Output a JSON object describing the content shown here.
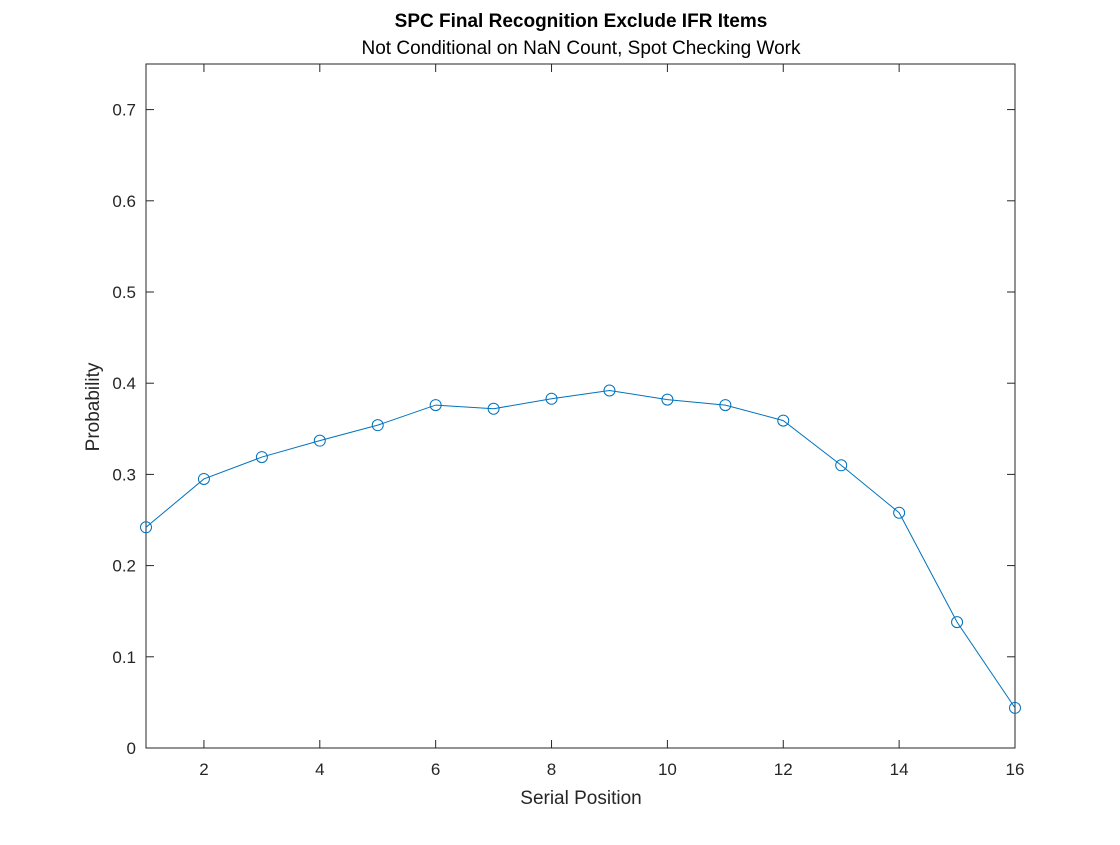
{
  "chart_data": {
    "type": "line",
    "title": "SPC Final Recognition Exclude IFR Items",
    "subtitle": "Not Conditional on NaN Count, Spot Checking Work",
    "xlabel": "Serial Position",
    "ylabel": "Probability",
    "xlim": [
      1,
      16
    ],
    "ylim": [
      0,
      0.75
    ],
    "xticks": [
      2,
      4,
      6,
      8,
      10,
      12,
      14,
      16
    ],
    "yticks": [
      0,
      0.1,
      0.2,
      0.3,
      0.4,
      0.5,
      0.6,
      0.7
    ],
    "ytick_labels": [
      "0",
      "0.1",
      "0.2",
      "0.3",
      "0.4",
      "0.5",
      "0.6",
      "0.7"
    ],
    "grid": false,
    "legend": "none",
    "marker": "circle",
    "series": [
      {
        "x": [
          1,
          2,
          3,
          4,
          5,
          6,
          7,
          8,
          9,
          10,
          11,
          12,
          13,
          14,
          15,
          16
        ],
        "values": [
          0.242,
          0.295,
          0.319,
          0.337,
          0.354,
          0.376,
          0.372,
          0.383,
          0.392,
          0.382,
          0.376,
          0.359,
          0.31,
          0.258,
          0.138,
          0.044
        ],
        "color": "#0072bd"
      }
    ],
    "colors": {
      "axis": "#262626",
      "line": "#0072bd",
      "background": "#ffffff"
    }
  }
}
